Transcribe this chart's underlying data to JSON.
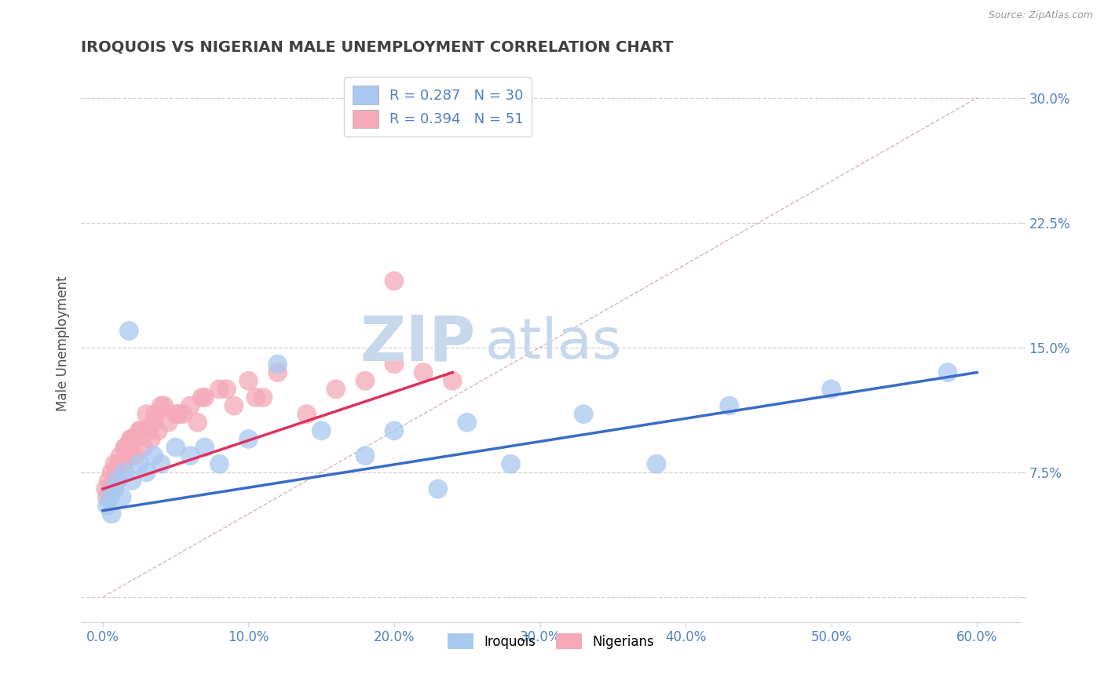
{
  "title": "IROQUOIS VS NIGERIAN MALE UNEMPLOYMENT CORRELATION CHART",
  "source": "Source: ZipAtlas.com",
  "xlabel_ticks": [
    0.0,
    10.0,
    20.0,
    30.0,
    40.0,
    50.0,
    60.0
  ],
  "ylabel_ticks": [
    0.0,
    7.5,
    15.0,
    22.5,
    30.0
  ],
  "xlim": [
    -1.5,
    63
  ],
  "ylim": [
    -1.5,
    32
  ],
  "legend_r1": "R = 0.287   N = 30",
  "legend_r2": "R = 0.394   N = 51",
  "legend_label1": "Iroquois",
  "legend_label2": "Nigerians",
  "color_blue": "#A8C8F0",
  "color_pink": "#F4A8B8",
  "color_trendline_blue": "#3A6BC8",
  "color_trendline_pink": "#E03060",
  "color_diag": "#D0A0A8",
  "watermark_zip": "ZIP",
  "watermark_atlas": "atlas",
  "watermark_color": "#C8D8EC",
  "background_color": "#FFFFFF",
  "grid_color": "#D0D0D0",
  "tick_color": "#5080C0",
  "title_color": "#404040",
  "ylabel_text": "Male Unemployment",
  "iroquois_x": [
    0.3,
    0.5,
    0.8,
    1.0,
    1.3,
    1.5,
    2.0,
    2.5,
    3.0,
    3.5,
    4.0,
    5.0,
    6.0,
    7.0,
    8.0,
    10.0,
    12.0,
    15.0,
    18.0,
    20.0,
    23.0,
    25.0,
    28.0,
    33.0,
    38.0,
    43.0,
    50.0,
    58.0,
    0.6,
    1.8
  ],
  "iroquois_y": [
    5.5,
    6.0,
    6.5,
    7.0,
    6.0,
    7.5,
    7.0,
    8.0,
    7.5,
    8.5,
    8.0,
    9.0,
    8.5,
    9.0,
    8.0,
    9.5,
    14.0,
    10.0,
    8.5,
    10.0,
    6.5,
    10.5,
    8.0,
    11.0,
    8.0,
    11.5,
    12.5,
    13.5,
    5.0,
    16.0
  ],
  "nigerians_x": [
    0.2,
    0.4,
    0.6,
    0.8,
    1.0,
    1.2,
    1.4,
    1.6,
    1.8,
    2.0,
    2.2,
    2.5,
    2.8,
    3.0,
    3.3,
    3.5,
    3.8,
    4.0,
    4.5,
    5.0,
    5.5,
    6.0,
    6.5,
    7.0,
    8.0,
    9.0,
    10.0,
    11.0,
    12.0,
    14.0,
    16.0,
    18.0,
    20.0,
    22.0,
    24.0,
    0.3,
    0.5,
    0.9,
    1.1,
    1.5,
    1.9,
    2.3,
    2.6,
    3.1,
    3.6,
    4.2,
    5.2,
    6.8,
    8.5,
    10.5,
    20.0
  ],
  "nigerians_y": [
    6.5,
    7.0,
    7.5,
    8.0,
    7.0,
    8.5,
    8.0,
    9.0,
    8.5,
    9.5,
    8.5,
    10.0,
    9.0,
    11.0,
    9.5,
    10.5,
    10.0,
    11.5,
    10.5,
    11.0,
    11.0,
    11.5,
    10.5,
    12.0,
    12.5,
    11.5,
    13.0,
    12.0,
    13.5,
    11.0,
    12.5,
    13.0,
    14.0,
    13.5,
    13.0,
    6.0,
    6.5,
    7.5,
    8.0,
    9.0,
    9.5,
    9.5,
    10.0,
    10.0,
    11.0,
    11.5,
    11.0,
    12.0,
    12.5,
    12.0,
    19.0
  ],
  "blue_trend_x0": 0.0,
  "blue_trend_y0": 5.2,
  "blue_trend_x1": 60.0,
  "blue_trend_y1": 13.5,
  "pink_trend_x0": 0.0,
  "pink_trend_y0": 6.5,
  "pink_trend_x1": 24.0,
  "pink_trend_y1": 13.5,
  "diag_x0": 0.0,
  "diag_y0": 0.0,
  "diag_x1": 60.0,
  "diag_y1": 30.0
}
